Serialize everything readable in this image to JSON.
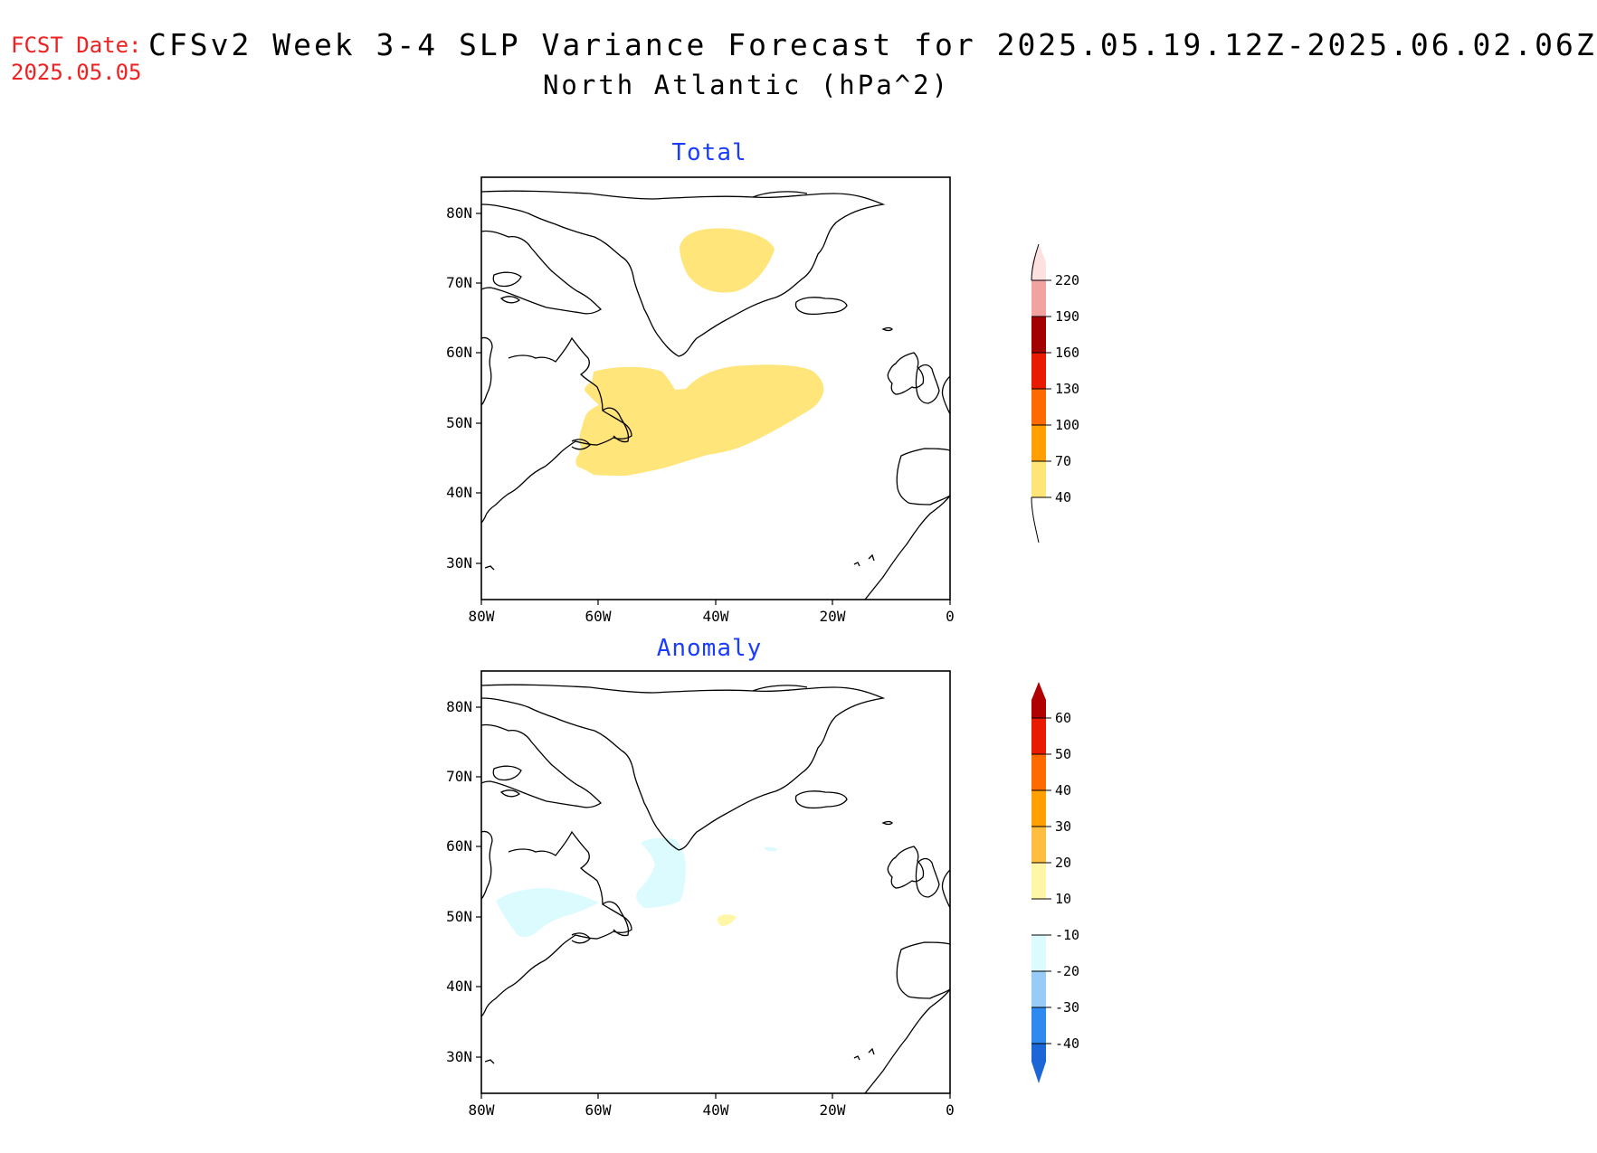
{
  "header": {
    "fcst_label": "FCST Date:",
    "fcst_date": "2025.05.05",
    "title": "CFSv2 Week 3-4 SLP Variance Forecast for 2025.05.19.12Z-2025.06.02.06Z",
    "subtitle": "North Atlantic (hPa^2)"
  },
  "map_axes": {
    "lat_ticks": [
      "80N",
      "70N",
      "60N",
      "50N",
      "40N",
      "30N"
    ],
    "lon_ticks": [
      "80W",
      "60W",
      "40W",
      "20W",
      "0"
    ],
    "lat_range": [
      25,
      85
    ],
    "lon_range": [
      -80,
      0
    ]
  },
  "panels": [
    {
      "title": "Total",
      "colorbar": {
        "levels": [
          "40",
          "70",
          "100",
          "130",
          "160",
          "190",
          "220"
        ],
        "colors": [
          "#ffe578",
          "#ffa000",
          "#ff6a00",
          "#e81a00",
          "#a50000",
          "#f3a2a2",
          "#fde0e0"
        ]
      },
      "features": [
        "shaded region > 40 over central Greenland",
        "shaded region 40-70 over Newfoundland and the central North Atlantic"
      ]
    },
    {
      "title": "Anomaly",
      "colorbar": {
        "levels": [
          "60",
          "50",
          "40",
          "30",
          "20",
          "10",
          "-10",
          "-20",
          "-30",
          "-40"
        ],
        "colors": [
          "#b00000",
          "#e81a00",
          "#ff6a00",
          "#ffa000",
          "#ffbe40",
          "#fff6a8",
          "#ffffff",
          "#dcfbff",
          "#98ccf6",
          "#2e8af0",
          "#1c66d8"
        ]
      },
      "features": [
        "light blue -10 to -20 region south of Greenland",
        "light blue region over Labrador Sea coast",
        "small yellow 10-20 patch near 50N 35W"
      ]
    }
  ]
}
